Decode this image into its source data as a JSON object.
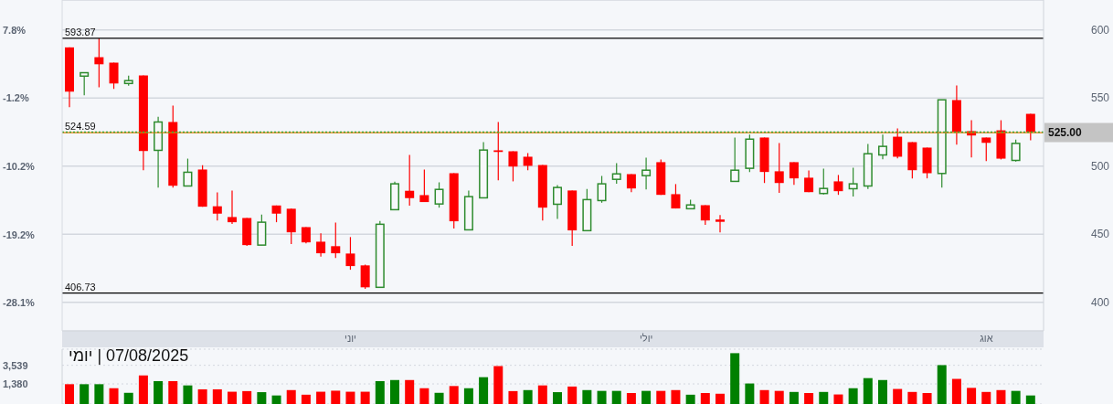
{
  "chart_data": [
    {
      "type": "candlestick",
      "categories": [
        null,
        null,
        null,
        null,
        null,
        null,
        null,
        null,
        null,
        null,
        null,
        null,
        null,
        null,
        null,
        null,
        null,
        null,
        null,
        "יוני",
        null,
        null,
        null,
        null,
        null,
        null,
        null,
        null,
        null,
        null,
        null,
        null,
        null,
        null,
        null,
        null,
        null,
        null,
        null,
        "יולי",
        null,
        null,
        null,
        null,
        null,
        null,
        null,
        null,
        null,
        null,
        null,
        null,
        null,
        null,
        null,
        null,
        null,
        null,
        null,
        null,
        null,
        null,
        "אוג",
        null,
        null,
        null
      ],
      "ohlc": [
        [
          587.2,
          587.2,
          543.3,
          554.7
        ],
        [
          566.1,
          568.6,
          552.0,
          568.6
        ],
        [
          580.0,
          593.87,
          557.9,
          574.8
        ],
        [
          576.0,
          576.0,
          556.7,
          560.7
        ],
        [
          560.7,
          566.4,
          559.0,
          562.8
        ],
        [
          566.6,
          566.6,
          497.0,
          511.1
        ],
        [
          511.6,
          536.2,
          484.3,
          532.4
        ],
        [
          532.4,
          544.4,
          484.3,
          485.6
        ],
        [
          485.4,
          505.5,
          485.4,
          495.5
        ],
        [
          497.5,
          500.6,
          470.2,
          470.2
        ],
        [
          470.5,
          480.7,
          460.1,
          465.1
        ],
        [
          462.6,
          482.1,
          457.5,
          458.8
        ],
        [
          461.9,
          461.9,
          441.4,
          442.0
        ],
        [
          442.0,
          464.4,
          442.0,
          458.8
        ],
        [
          471.1,
          471.1,
          458.8,
          465.1
        ],
        [
          468.7,
          468.7,
          442.7,
          451.4
        ],
        [
          455.2,
          455.2,
          443.2,
          444.0
        ],
        [
          444.5,
          450.6,
          433.6,
          436.0
        ],
        [
          441.2,
          458.6,
          432.6,
          436.0
        ],
        [
          435.8,
          447.9,
          423.9,
          426.6
        ],
        [
          427.1,
          427.7,
          409.8,
          411.0
        ],
        [
          411.0,
          459.7,
          411.0,
          457.3
        ],
        [
          468.0,
          488.6,
          468.0,
          487.0
        ],
        [
          481.9,
          508.2,
          470.9,
          476.5
        ],
        [
          478.7,
          497.5,
          473.6,
          473.6
        ],
        [
          472.2,
          488.1,
          469.5,
          482.9
        ],
        [
          494.8,
          494.8,
          454.1,
          459.5
        ],
        [
          453.2,
          482.1,
          453.2,
          477.6
        ],
        [
          476.7,
          517.6,
          476.7,
          511.8
        ],
        [
          511.6,
          532.4,
          489.6,
          510.4
        ],
        [
          510.9,
          510.9,
          488.8,
          499.7
        ],
        [
          506.9,
          509.6,
          497.0,
          500.2
        ],
        [
          500.8,
          500.8,
          460.1,
          469.5
        ],
        [
          472.0,
          486.1,
          461.3,
          484.3
        ],
        [
          482.1,
          482.1,
          441.4,
          452.8
        ],
        [
          452.6,
          483.2,
          452.6,
          475.4
        ],
        [
          474.7,
          492.8,
          473.1,
          487.0
        ],
        [
          490.3,
          502.2,
          487.0,
          494.3
        ],
        [
          494.1,
          494.1,
          480.9,
          483.6
        ],
        [
          493.0,
          506.2,
          482.9,
          497.0
        ],
        [
          502.9,
          504.9,
          478.9,
          478.9
        ],
        [
          479.4,
          486.8,
          468.9,
          468.9
        ],
        [
          468.7,
          475.4,
          468.7,
          471.5
        ],
        [
          471.3,
          471.3,
          456.8,
          460.1
        ],
        [
          460.8,
          464.0,
          451.4,
          459.1
        ],
        [
          488.8,
          521.0,
          488.8,
          497.0
        ],
        [
          498.4,
          523.2,
          495.7,
          519.8
        ],
        [
          521.0,
          521.0,
          487.6,
          495.7
        ],
        [
          496.2,
          516.9,
          480.3,
          487.6
        ],
        [
          502.9,
          502.9,
          486.3,
          491.0
        ],
        [
          491.5,
          496.8,
          480.9,
          480.9
        ],
        [
          479.9,
          498.2,
          479.2,
          483.6
        ],
        [
          488.8,
          493.5,
          478.9,
          481.6
        ],
        [
          483.4,
          498.8,
          477.6,
          487.0
        ],
        [
          485.4,
          516.3,
          483.2,
          509.1
        ],
        [
          508.2,
          523.2,
          505.1,
          514.5
        ],
        [
          521.6,
          527.7,
          505.7,
          506.9
        ],
        [
          517.6,
          517.6,
          491.0,
          497.0
        ],
        [
          513.6,
          513.6,
          491.0,
          494.8
        ],
        [
          494.6,
          548.7,
          484.3,
          548.7
        ],
        [
          548.5,
          559.2,
          515.8,
          525.0
        ],
        [
          525.7,
          533.7,
          506.4,
          522.5
        ],
        [
          521.0,
          521.0,
          503.7,
          517.1
        ],
        [
          526.3,
          533.7,
          504.9,
          505.5
        ],
        [
          504.2,
          519.4,
          503.3,
          516.7
        ],
        [
          538.4,
          538.4,
          519.0,
          525.0
        ]
      ],
      "colors": [
        "#ff0000",
        "#2e8b2e",
        "#ff0000",
        "#ff0000",
        "#2e8b2e",
        "#ff0000",
        "#2e8b2e",
        "#ff0000",
        "#2e8b2e",
        "#ff0000",
        "#ff0000",
        "#ff0000",
        "#ff0000",
        "#2e8b2e",
        "#ff0000",
        "#ff0000",
        "#ff0000",
        "#ff0000",
        "#ff0000",
        "#ff0000",
        "#ff0000",
        "#2e8b2e",
        "#2e8b2e",
        "#ff0000",
        "#ff0000",
        "#2e8b2e",
        "#ff0000",
        "#2e8b2e",
        "#2e8b2e",
        "#ff0000",
        "#ff0000",
        "#ff0000",
        "#ff0000",
        "#2e8b2e",
        "#ff0000",
        "#2e8b2e",
        "#2e8b2e",
        "#2e8b2e",
        "#ff0000",
        "#2e8b2e",
        "#ff0000",
        "#ff0000",
        "#2e8b2e",
        "#ff0000",
        "#ff0000",
        "#2e8b2e",
        "#2e8b2e",
        "#ff0000",
        "#ff0000",
        "#ff0000",
        "#ff0000",
        "#2e8b2e",
        "#ff0000",
        "#2e8b2e",
        "#2e8b2e",
        "#2e8b2e",
        "#ff0000",
        "#ff0000",
        "#ff0000",
        "#2e8b2e",
        "#ff0000",
        "#ff0000",
        "#ff0000",
        "#ff0000",
        "#2e8b2e",
        "#ff0000"
      ],
      "ylim": [
        379,
        622
      ],
      "yticks": [
        400,
        450,
        500,
        550,
        600
      ],
      "y2lim": [
        -31.87,
        11.75
      ],
      "y2ticks": [
        {
          "value": 7.8,
          "label": "7.8%"
        },
        {
          "value": -1.2,
          "label": "-1.2%"
        },
        {
          "value": -10.2,
          "label": "-10.2%"
        },
        {
          "value": -19.2,
          "label": "-19.2%"
        },
        {
          "value": -28.1,
          "label": "-28.1%"
        }
      ],
      "grid": "y",
      "ref_lines": [
        {
          "axis": "y",
          "value": 593.87,
          "label": "593.87",
          "color": "#000000"
        },
        {
          "axis": "y",
          "value": 406.73,
          "label": "406.73",
          "color": "#000000"
        },
        {
          "axis": "y",
          "value": 524.59,
          "label": "524.59",
          "color": "#e07b00"
        },
        {
          "axis": "y",
          "value": 525.0,
          "label": "525.00",
          "color": "#3aa63a",
          "line_style": "dotted"
        }
      ]
    },
    {
      "type": "bar",
      "title": "07/08/2025 | יומי",
      "categories": [
        null,
        null,
        null,
        null,
        null,
        null,
        null,
        null,
        null,
        null,
        null,
        null,
        null,
        null,
        null,
        null,
        null,
        null,
        null,
        null,
        null,
        null,
        null,
        null,
        null,
        null,
        null,
        null,
        null,
        null,
        null,
        null,
        null,
        null,
        null,
        null,
        null,
        null,
        null,
        null,
        null,
        null,
        null,
        null,
        null,
        null,
        null,
        null,
        null,
        null,
        null,
        null,
        null,
        null,
        null,
        null,
        null,
        null,
        null,
        null,
        null,
        null,
        null,
        null,
        null,
        null
      ],
      "values": [
        1360,
        1360,
        1360,
        1110,
        880,
        2120,
        1590,
        1590,
        1280,
        1050,
        1050,
        930,
        960,
        910,
        770,
        1010,
        800,
        930,
        980,
        930,
        930,
        1590,
        1680,
        1680,
        1110,
        880,
        1240,
        1110,
        1940,
        3400,
        960,
        1010,
        1280,
        910,
        1210,
        1010,
        970,
        970,
        870,
        970,
        970,
        1010,
        800,
        870,
        840,
        6530,
        1410,
        1010,
        970,
        920,
        870,
        920,
        810,
        1110,
        1850,
        1680,
        1070,
        920,
        870,
        3570,
        1780,
        1130,
        920,
        1010,
        970,
        770
      ],
      "colors": [
        "#ff0000",
        "#008000",
        "#008000",
        "#ff0000",
        "#008000",
        "#ff0000",
        "#008000",
        "#ff0000",
        "#008000",
        "#ff0000",
        "#ff0000",
        "#ff0000",
        "#ff0000",
        "#008000",
        "#008000",
        "#ff0000",
        "#ff0000",
        "#ff0000",
        "#ff0000",
        "#ff0000",
        "#ff0000",
        "#008000",
        "#008000",
        "#ff0000",
        "#ff0000",
        "#008000",
        "#ff0000",
        "#008000",
        "#008000",
        "#ff0000",
        "#ff0000",
        "#008000",
        "#ff0000",
        "#008000",
        "#ff0000",
        "#008000",
        "#008000",
        "#008000",
        "#ff0000",
        "#008000",
        "#ff0000",
        "#ff0000",
        "#008000",
        "#ff0000",
        "#ff0000",
        "#008000",
        "#008000",
        "#ff0000",
        "#ff0000",
        "#008000",
        "#ff0000",
        "#008000",
        "#ff0000",
        "#008000",
        "#008000",
        "#008000",
        "#ff0000",
        "#ff0000",
        "#ff0000",
        "#008000",
        "#ff0000",
        "#ff0000",
        "#ff0000",
        "#ff0000",
        "#008000",
        "#008000"
      ],
      "ylim": [
        500,
        8000
      ],
      "yticks": [
        {
          "value": 3539,
          "label": "3,539"
        },
        {
          "value": 1380,
          "label": "1,380"
        }
      ],
      "log": true,
      "grid": "y",
      "tick_labels": "y"
    }
  ]
}
